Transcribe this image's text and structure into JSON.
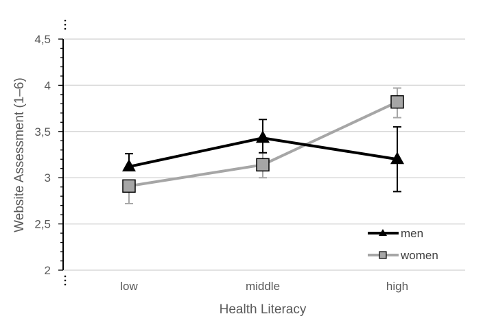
{
  "chart_data": {
    "type": "line",
    "xlabel": "Health Literacy",
    "ylabel": "Website Assessment (1–6)",
    "categories": [
      "low",
      "middle",
      "high"
    ],
    "ylim": [
      2,
      4.5
    ],
    "yticks": [
      "2",
      "2,5",
      "3",
      "3,5",
      "4",
      "4,5"
    ],
    "ytick_values": [
      2,
      2.5,
      3,
      3.5,
      4,
      4.5
    ],
    "grid": true,
    "legend_position": "bottom-right",
    "series": [
      {
        "name": "men",
        "marker": "triangle",
        "color": "#000000",
        "values": [
          3.12,
          3.43,
          3.2
        ],
        "err_low": [
          3.12,
          3.27,
          2.85
        ],
        "err_high": [
          3.26,
          3.63,
          3.55
        ]
      },
      {
        "name": "women",
        "marker": "square",
        "color": "#a6a6a6",
        "values": [
          2.91,
          3.14,
          3.82
        ],
        "err_low": [
          2.72,
          3.0,
          3.65
        ],
        "err_high": [
          2.91,
          3.27,
          3.97
        ]
      }
    ]
  }
}
